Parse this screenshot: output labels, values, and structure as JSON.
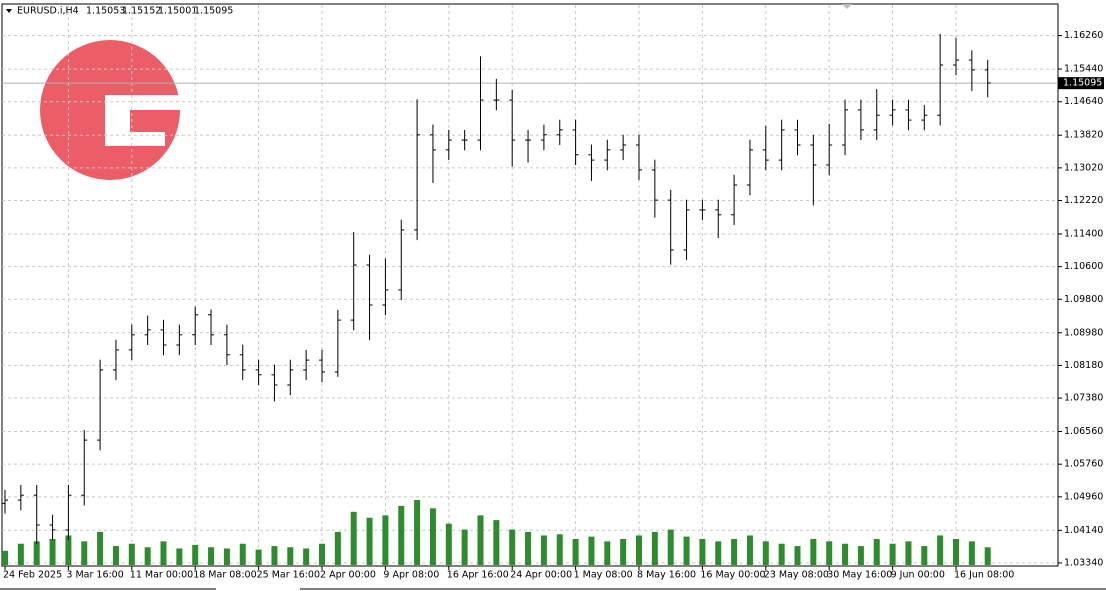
{
  "chart_data": {
    "type": "ohlc",
    "symbol": "EURUSD.i,H4",
    "header_quotes": [
      1.15053,
      1.15152,
      1.15001,
      1.15095
    ],
    "current_price": {
      "value": 1.15095,
      "label": "1.15095"
    },
    "categories": [
      "24 Feb 2025",
      null,
      null,
      null,
      "3 Mar 16:00",
      null,
      null,
      null,
      "11 Mar 00:00",
      null,
      null,
      null,
      "18 Mar 08:00",
      null,
      null,
      null,
      "25 Mar 16:00",
      null,
      null,
      null,
      "2 Apr 00:00",
      null,
      null,
      null,
      "9 Apr 08:00",
      null,
      null,
      null,
      "16 Apr 16:00",
      null,
      null,
      null,
      "24 Apr 00:00",
      null,
      null,
      null,
      "1 May 08:00",
      null,
      null,
      null,
      "8 May 16:00",
      null,
      null,
      null,
      "16 May 00:00",
      null,
      null,
      null,
      "23 May 08:00",
      null,
      null,
      null,
      "30 May 16:00",
      null,
      null,
      null,
      "9 Jun 00:00",
      null,
      null,
      null,
      "16 Jun 08:00",
      null,
      null
    ],
    "open": [
      1.048,
      1.0488,
      1.05,
      1.0427,
      1.0415,
      1.05,
      1.0635,
      1.0807,
      1.0856,
      1.0893,
      1.0905,
      1.0868,
      1.0893,
      1.0942,
      1.0893,
      1.0844,
      1.0807,
      1.0795,
      1.077,
      1.0807,
      1.0831,
      1.0802,
      1.0929,
      1.1064,
      1.0966,
      1.1003,
      1.115,
      1.1383,
      1.1346,
      1.137,
      1.137,
      1.1468,
      1.1468,
      1.137,
      1.137,
      1.1383,
      1.1395,
      1.1334,
      1.1321,
      1.1346,
      1.1358,
      1.1297,
      1.1223,
      1.1101,
      1.1199,
      1.1199,
      1.1187,
      1.126,
      1.1346,
      1.1321,
      1.1395,
      1.1358,
      1.1309,
      1.1358,
      1.1444,
      1.1395,
      1.1431,
      1.1444,
      1.1419,
      1.1431,
      1.1554,
      1.1566,
      1.1542
    ],
    "high": [
      1.0513,
      1.0525,
      1.0525,
      1.0452,
      1.0525,
      1.066,
      1.0832,
      1.0881,
      1.0918,
      1.094,
      1.093,
      1.0918,
      1.0962,
      1.0955,
      1.0918,
      1.0869,
      1.0832,
      1.082,
      1.0832,
      1.0856,
      1.0856,
      1.0954,
      1.1145,
      1.1089,
      1.108,
      1.1175,
      1.147,
      1.1408,
      1.1395,
      1.1395,
      1.1575,
      1.152,
      1.1493,
      1.1395,
      1.1408,
      1.142,
      1.142,
      1.1359,
      1.1371,
      1.1383,
      1.1383,
      1.1322,
      1.1248,
      1.1224,
      1.1224,
      1.1224,
      1.1285,
      1.1371,
      1.1405,
      1.142,
      1.142,
      1.1383,
      1.141,
      1.1469,
      1.1469,
      1.1495,
      1.1469,
      1.1469,
      1.1456,
      1.163,
      1.162,
      1.159,
      1.1567
    ],
    "low": [
      1.0455,
      1.0463,
      1.038,
      1.039,
      1.039,
      1.0475,
      1.061,
      1.0782,
      1.0831,
      1.0868,
      1.0843,
      1.0843,
      1.0868,
      1.0868,
      1.0819,
      1.0782,
      1.077,
      1.073,
      1.0745,
      1.0782,
      1.0777,
      1.079,
      1.0904,
      1.088,
      1.0941,
      1.0978,
      1.1125,
      1.1265,
      1.1321,
      1.1345,
      1.1345,
      1.1443,
      1.1305,
      1.1315,
      1.1345,
      1.1358,
      1.1309,
      1.127,
      1.1296,
      1.1321,
      1.1272,
      1.118,
      1.1065,
      1.1076,
      1.1174,
      1.113,
      1.1162,
      1.1235,
      1.1296,
      1.1296,
      1.1333,
      1.121,
      1.1284,
      1.1333,
      1.137,
      1.137,
      1.1406,
      1.1394,
      1.1394,
      1.1406,
      1.1529,
      1.149,
      1.1475
    ],
    "close": [
      1.0488,
      1.05,
      1.0427,
      1.0415,
      1.05,
      1.0635,
      1.0807,
      1.0856,
      1.0893,
      1.0905,
      1.0868,
      1.0893,
      1.0942,
      1.0893,
      1.0844,
      1.0807,
      1.0795,
      1.077,
      1.0807,
      1.0831,
      1.0802,
      1.0929,
      1.1064,
      1.0966,
      1.1003,
      1.115,
      1.1383,
      1.1346,
      1.137,
      1.137,
      1.1468,
      1.1468,
      1.137,
      1.137,
      1.1383,
      1.1395,
      1.1334,
      1.1321,
      1.1346,
      1.1358,
      1.1297,
      1.1223,
      1.1101,
      1.1199,
      1.1199,
      1.1187,
      1.126,
      1.1346,
      1.1321,
      1.1395,
      1.1358,
      1.1309,
      1.1358,
      1.1444,
      1.1395,
      1.1431,
      1.1444,
      1.1419,
      1.1431,
      1.1554,
      1.1566,
      1.1542,
      1.151
    ],
    "volume": [
      12000,
      18000,
      20000,
      22000,
      25000,
      20000,
      28000,
      16000,
      18000,
      15000,
      20000,
      14000,
      17000,
      15000,
      14000,
      18000,
      13000,
      16000,
      15000,
      14000,
      18000,
      28000,
      45000,
      40000,
      42000,
      50000,
      55000,
      48000,
      35000,
      30000,
      42000,
      38000,
      30000,
      28000,
      25000,
      26000,
      22000,
      24000,
      20000,
      22000,
      25000,
      28000,
      30000,
      24000,
      22000,
      20000,
      22000,
      25000,
      20000,
      18000,
      16000,
      22000,
      20000,
      18000,
      16000,
      22000,
      18000,
      20000,
      16000,
      25000,
      22000,
      20000,
      15000
    ],
    "color": "#000000",
    "volume_color": "#2e8b2e",
    "ylim": [
      1.0329,
      1.1701
    ],
    "yticks": [
      {
        "value": 1.1626,
        "label": "1.16260"
      },
      {
        "value": 1.1544,
        "label": "1.15440"
      },
      {
        "value": 1.1464,
        "label": "1.14640"
      },
      {
        "value": 1.1382,
        "label": "1.13820"
      },
      {
        "value": 1.1302,
        "label": "1.13020"
      },
      {
        "value": 1.1222,
        "label": "1.12220"
      },
      {
        "value": 1.114,
        "label": "1.11400"
      },
      {
        "value": 1.106,
        "label": "1.10600"
      },
      {
        "value": 1.098,
        "label": "1.09800"
      },
      {
        "value": 1.0898,
        "label": "1.08980"
      },
      {
        "value": 1.0818,
        "label": "1.08180"
      },
      {
        "value": 1.0738,
        "label": "1.07380"
      },
      {
        "value": 1.0656,
        "label": "1.06560"
      },
      {
        "value": 1.0576,
        "label": "1.05760"
      },
      {
        "value": 1.0496,
        "label": "1.04960"
      },
      {
        "value": 1.0414,
        "label": "1.04140"
      },
      {
        "value": 1.0334,
        "label": "1.03340"
      }
    ],
    "grid": true
  }
}
